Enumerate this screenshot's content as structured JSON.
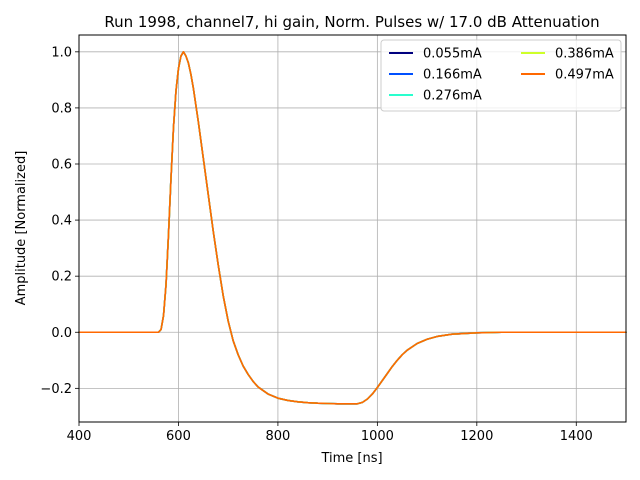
{
  "chart_data": {
    "type": "line",
    "title": "Run 1998, channel7, hi gain, Norm. Pulses w/ 17.0 dB Attenuation",
    "xlabel": "Time [ns]",
    "ylabel": "Amplitude [Normalized]",
    "xlim": [
      400,
      1500
    ],
    "ylim": [
      -0.32,
      1.06
    ],
    "xticks": [
      400,
      600,
      800,
      1000,
      1200,
      1400
    ],
    "yticks": [
      -0.2,
      0.0,
      0.2,
      0.4,
      0.6,
      0.8,
      1.0
    ],
    "grid": true,
    "legend": {
      "placement": "top-right",
      "columns": 2
    },
    "x": [
      400,
      500,
      560,
      565,
      570,
      575,
      580,
      585,
      590,
      595,
      600,
      605,
      610,
      615,
      620,
      625,
      630,
      640,
      650,
      660,
      670,
      680,
      690,
      700,
      710,
      720,
      730,
      740,
      750,
      760,
      780,
      800,
      820,
      840,
      860,
      880,
      900,
      920,
      940,
      960,
      970,
      980,
      990,
      1000,
      1010,
      1020,
      1030,
      1040,
      1050,
      1060,
      1080,
      1100,
      1120,
      1150,
      1200,
      1250,
      1300,
      1400,
      1500
    ],
    "series": [
      {
        "name": "0.055mA",
        "color": "#00007f",
        "values": [
          0.0,
          0.0,
          0.0,
          0.01,
          0.06,
          0.17,
          0.35,
          0.55,
          0.73,
          0.86,
          0.94,
          0.985,
          1.0,
          0.985,
          0.96,
          0.92,
          0.87,
          0.75,
          0.62,
          0.49,
          0.36,
          0.24,
          0.13,
          0.04,
          -0.03,
          -0.08,
          -0.12,
          -0.15,
          -0.175,
          -0.195,
          -0.22,
          -0.235,
          -0.243,
          -0.248,
          -0.251,
          -0.253,
          -0.254,
          -0.255,
          -0.255,
          -0.255,
          -0.25,
          -0.238,
          -0.22,
          -0.197,
          -0.172,
          -0.147,
          -0.122,
          -0.1,
          -0.08,
          -0.064,
          -0.04,
          -0.025,
          -0.015,
          -0.007,
          -0.002,
          0.0,
          0.0,
          0.0,
          0.0
        ]
      },
      {
        "name": "0.166mA",
        "color": "#0050ff",
        "values": [
          0.0,
          0.0,
          0.0,
          0.01,
          0.06,
          0.17,
          0.35,
          0.55,
          0.73,
          0.86,
          0.94,
          0.985,
          1.0,
          0.985,
          0.96,
          0.92,
          0.87,
          0.75,
          0.62,
          0.49,
          0.36,
          0.24,
          0.13,
          0.04,
          -0.03,
          -0.08,
          -0.12,
          -0.15,
          -0.175,
          -0.195,
          -0.22,
          -0.235,
          -0.243,
          -0.248,
          -0.251,
          -0.253,
          -0.254,
          -0.255,
          -0.255,
          -0.255,
          -0.25,
          -0.238,
          -0.22,
          -0.197,
          -0.172,
          -0.147,
          -0.122,
          -0.1,
          -0.08,
          -0.064,
          -0.04,
          -0.025,
          -0.015,
          -0.007,
          -0.002,
          0.0,
          0.0,
          0.0,
          0.0
        ]
      },
      {
        "name": "0.276mA",
        "color": "#29ffce",
        "values": [
          0.0,
          0.0,
          0.0,
          0.01,
          0.06,
          0.17,
          0.35,
          0.55,
          0.73,
          0.86,
          0.94,
          0.985,
          1.0,
          0.985,
          0.96,
          0.92,
          0.87,
          0.75,
          0.62,
          0.49,
          0.36,
          0.24,
          0.13,
          0.04,
          -0.03,
          -0.08,
          -0.12,
          -0.15,
          -0.175,
          -0.195,
          -0.22,
          -0.235,
          -0.243,
          -0.248,
          -0.251,
          -0.253,
          -0.254,
          -0.255,
          -0.255,
          -0.255,
          -0.25,
          -0.238,
          -0.22,
          -0.197,
          -0.172,
          -0.147,
          -0.122,
          -0.1,
          -0.08,
          -0.064,
          -0.04,
          -0.025,
          -0.015,
          -0.007,
          -0.002,
          0.0,
          0.0,
          0.0,
          0.0
        ]
      },
      {
        "name": "0.386mA",
        "color": "#ceff29",
        "values": [
          0.0,
          0.0,
          0.0,
          0.01,
          0.06,
          0.17,
          0.35,
          0.55,
          0.73,
          0.86,
          0.94,
          0.985,
          1.0,
          0.985,
          0.96,
          0.92,
          0.87,
          0.75,
          0.62,
          0.49,
          0.36,
          0.24,
          0.13,
          0.04,
          -0.03,
          -0.08,
          -0.12,
          -0.15,
          -0.175,
          -0.195,
          -0.22,
          -0.235,
          -0.243,
          -0.248,
          -0.251,
          -0.253,
          -0.254,
          -0.255,
          -0.255,
          -0.255,
          -0.25,
          -0.238,
          -0.22,
          -0.197,
          -0.172,
          -0.147,
          -0.122,
          -0.1,
          -0.08,
          -0.064,
          -0.04,
          -0.025,
          -0.015,
          -0.007,
          -0.002,
          0.0,
          0.0,
          0.0,
          0.0
        ]
      },
      {
        "name": "0.497mA",
        "color": "#ff6800",
        "values": [
          0.0,
          0.0,
          0.0,
          0.01,
          0.06,
          0.17,
          0.35,
          0.55,
          0.73,
          0.86,
          0.94,
          0.985,
          1.0,
          0.985,
          0.96,
          0.92,
          0.87,
          0.75,
          0.62,
          0.49,
          0.36,
          0.24,
          0.13,
          0.04,
          -0.03,
          -0.08,
          -0.12,
          -0.15,
          -0.175,
          -0.195,
          -0.22,
          -0.235,
          -0.243,
          -0.248,
          -0.251,
          -0.253,
          -0.254,
          -0.255,
          -0.255,
          -0.255,
          -0.25,
          -0.238,
          -0.22,
          -0.197,
          -0.172,
          -0.147,
          -0.122,
          -0.1,
          -0.08,
          -0.064,
          -0.04,
          -0.025,
          -0.015,
          -0.007,
          -0.002,
          0.0,
          0.0,
          0.0,
          0.0
        ]
      }
    ]
  }
}
